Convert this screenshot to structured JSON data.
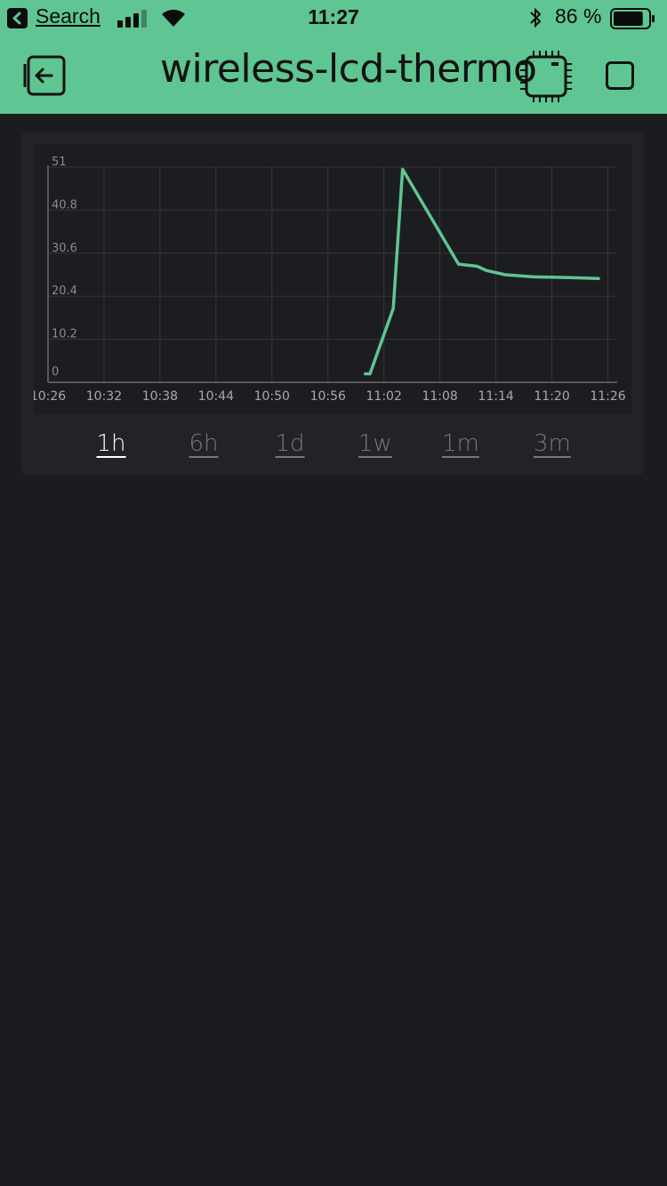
{
  "status_bar": {
    "back_label": "Search",
    "time": "11:27",
    "battery_percent": "86 %",
    "battery_level": 0.86,
    "signal_bars": 3
  },
  "header": {
    "title": "wireless-lcd-thermo",
    "exit_icon": "exit-icon",
    "device_icon": "chip-icon",
    "stop_icon": "stop-icon"
  },
  "colors": {
    "accent": "#5fc592",
    "background": "#1b1c1f",
    "widget": "#222327",
    "line": "#5fc592"
  },
  "chart_data": {
    "type": "line",
    "title": "",
    "xlabel": "",
    "ylabel": "",
    "y_ticks": [
      "51",
      "40.8",
      "30.6",
      "20.4",
      "10.2",
      "0"
    ],
    "x_ticks": [
      "10:26",
      "10:32",
      "10:38",
      "10:44",
      "10:50",
      "10:56",
      "11:02",
      "11:08",
      "11:14",
      "11:20",
      "11:26"
    ],
    "ylim": [
      0,
      51
    ],
    "xlim": [
      "10:26",
      "11:27"
    ],
    "grid": true,
    "series": [
      {
        "values": [
          {
            "x": "11:00",
            "y": 2
          },
          {
            "x": "11:00:30",
            "y": 2
          },
          {
            "x": "11:03",
            "y": 17.5
          },
          {
            "x": "11:04",
            "y": 50.5
          },
          {
            "x": "11:10",
            "y": 28
          },
          {
            "x": "11:12",
            "y": 27.5
          },
          {
            "x": "11:13",
            "y": 26.5
          },
          {
            "x": "11:15",
            "y": 25.5
          },
          {
            "x": "11:18",
            "y": 25
          },
          {
            "x": "11:22",
            "y": 24.8
          },
          {
            "x": "11:25",
            "y": 24.6
          }
        ]
      }
    ]
  },
  "periods": [
    "1h",
    "6h",
    "1d",
    "1w",
    "1m",
    "3m"
  ],
  "active_period": "1h"
}
